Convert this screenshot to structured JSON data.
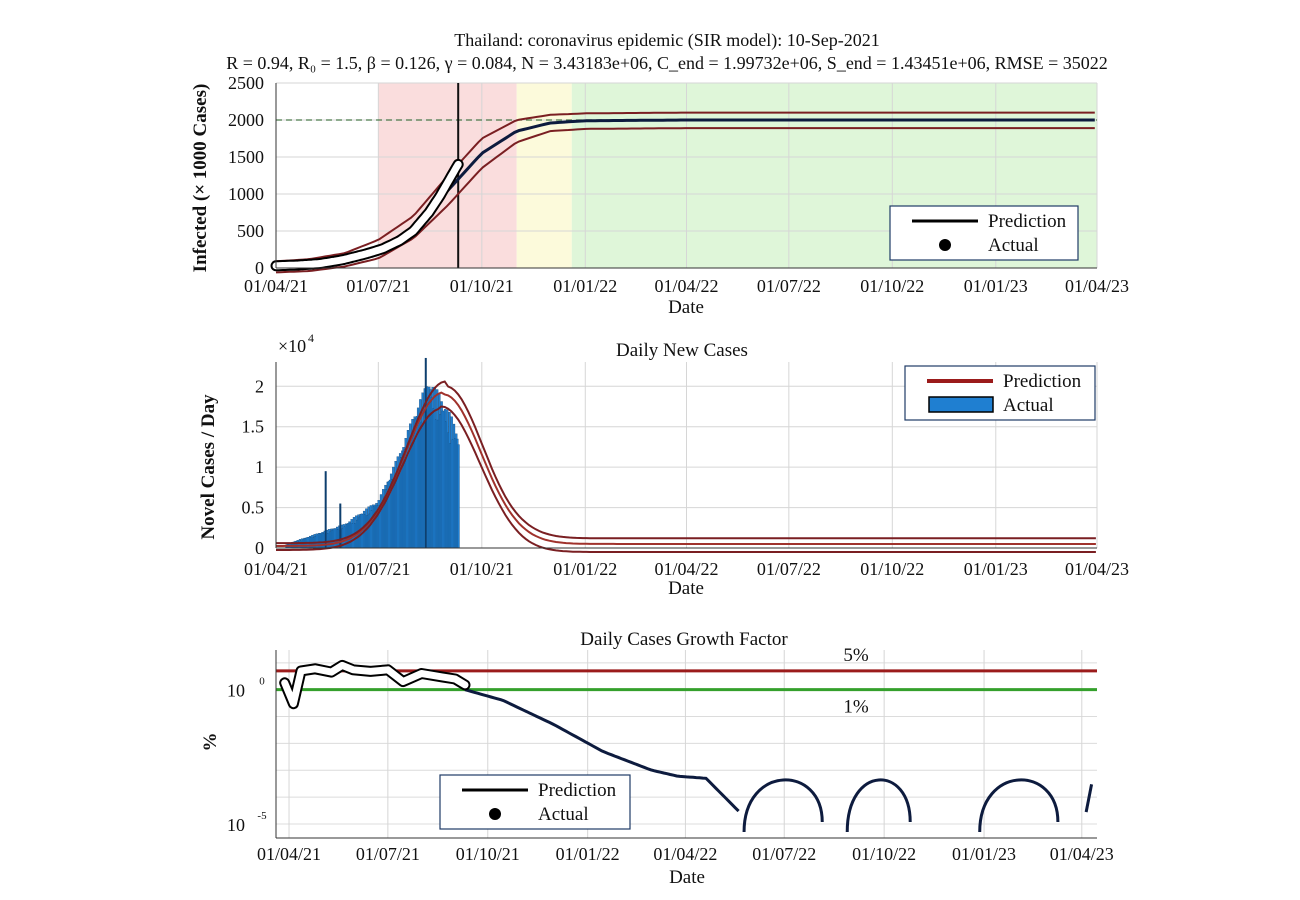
{
  "suptitle": {
    "line1": "Thailand: coronavirus epidemic (SIR model): 10-Sep-2021",
    "line2": "R = 0.94, R₀ = 1.5, β = 0.126, γ = 0.084, N = 3.43183e+06, C_end = 1.99732e+06, S_end = 1.43451e+06, RMSE = 35022"
  },
  "colors": {
    "prediction_main": "#0d1b3e",
    "prediction_band": "#7a1f22",
    "actual_fill": "#ffffff",
    "bar_fill": "#1f7fd1",
    "red_line": "#9b1b1b",
    "green_line": "#34a02c",
    "phase_red": "#f9d7d7",
    "phase_yellow": "#fcf9d5",
    "phase_green": "#d9f5d2"
  },
  "chart_data": [
    {
      "id": "infected",
      "type": "line",
      "title": "",
      "xlabel": "Date",
      "ylabel": "Infected (× 1000 Cases)",
      "x_ticks": [
        "01/04/21",
        "01/07/21",
        "01/10/21",
        "01/01/22",
        "01/04/22",
        "01/07/22",
        "01/10/22",
        "01/01/23",
        "01/04/23"
      ],
      "xlim": [
        "2021-04-01",
        "2023-04-01"
      ],
      "ylim": [
        0,
        2500
      ],
      "y_ticks": [
        0,
        500,
        1000,
        1500,
        2000,
        2500
      ],
      "grid": true,
      "legend": {
        "placement": "bottom-right",
        "entries": [
          "Prediction",
          "Actual"
        ]
      },
      "reference_line": {
        "y": 2000,
        "style": "dashed"
      },
      "current_date": "2021-09-10",
      "phases": [
        {
          "color": "red",
          "start": "2021-07-01",
          "end": "2021-11-01"
        },
        {
          "color": "yellow",
          "start": "2021-11-01",
          "end": "2021-12-20"
        },
        {
          "color": "green",
          "start": "2021-12-20",
          "end": "2023-04-01"
        }
      ],
      "series": [
        {
          "name": "Prediction",
          "role": "main",
          "x": [
            "2021-04-01",
            "2021-05-01",
            "2021-06-01",
            "2021-07-01",
            "2021-08-01",
            "2021-09-01",
            "2021-10-01",
            "2021-11-01",
            "2021-12-01",
            "2022-01-01",
            "2022-04-01",
            "2023-04-01"
          ],
          "y": [
            40,
            60,
            110,
            250,
            550,
            1050,
            1550,
            1850,
            1960,
            1990,
            2000,
            2000
          ]
        },
        {
          "role": "upper",
          "x": [
            "2021-04-01",
            "2021-05-01",
            "2021-06-01",
            "2021-07-01",
            "2021-08-01",
            "2021-09-01",
            "2021-10-01",
            "2021-11-01",
            "2021-12-01",
            "2022-01-01",
            "2022-04-01",
            "2023-04-01"
          ],
          "y": [
            90,
            120,
            200,
            380,
            700,
            1250,
            1750,
            2000,
            2070,
            2090,
            2100,
            2100
          ]
        },
        {
          "role": "lower",
          "x": [
            "2021-04-01",
            "2021-05-01",
            "2021-06-01",
            "2021-07-01",
            "2021-08-01",
            "2021-09-01",
            "2021-10-01",
            "2021-11-01",
            "2021-12-01",
            "2022-01-01",
            "2022-04-01",
            "2023-04-01"
          ],
          "y": [
            -60,
            -40,
            20,
            130,
            400,
            850,
            1350,
            1700,
            1850,
            1880,
            1890,
            1890
          ]
        },
        {
          "name": "Actual",
          "role": "actual",
          "x": [
            "2021-04-01",
            "2021-04-20",
            "2021-05-10",
            "2021-05-30",
            "2021-06-20",
            "2021-07-05",
            "2021-07-20",
            "2021-08-01",
            "2021-08-15",
            "2021-08-25",
            "2021-09-05",
            "2021-09-10"
          ],
          "y": [
            30,
            40,
            60,
            110,
            190,
            260,
            370,
            500,
            750,
            980,
            1270,
            1400
          ]
        }
      ]
    },
    {
      "id": "daily",
      "type": "bar",
      "title": "Daily New Cases",
      "xlabel": "Date",
      "ylabel": "Novel Cases / Day",
      "y_exponent": "×10",
      "y_exponent_power": "4",
      "x_ticks": [
        "01/04/21",
        "01/07/21",
        "01/10/21",
        "01/01/22",
        "01/04/22",
        "01/07/22",
        "01/10/22",
        "01/01/23",
        "01/04/23"
      ],
      "xlim": [
        "2021-04-01",
        "2023-04-01"
      ],
      "ylim": [
        0,
        2.3
      ],
      "y_ticks": [
        0,
        0.5,
        1,
        1.5,
        2
      ],
      "grid": true,
      "legend": {
        "placement": "top-right",
        "entries": [
          "Prediction",
          "Actual"
        ]
      },
      "bars": {
        "name": "Actual",
        "start": "2021-04-10",
        "end": "2021-09-10",
        "spikes": [
          {
            "date": "2021-05-15",
            "value": 0.95
          },
          {
            "date": "2021-05-28",
            "value": 0.55
          },
          {
            "date": "2021-08-12",
            "value": 2.35
          }
        ],
        "envelope": [
          [
            "2021-04-10",
            0.05
          ],
          [
            "2021-05-01",
            0.15
          ],
          [
            "2021-06-01",
            0.3
          ],
          [
            "2021-07-01",
            0.6
          ],
          [
            "2021-07-20",
            1.2
          ],
          [
            "2021-08-05",
            1.8
          ],
          [
            "2021-08-15",
            2.1
          ],
          [
            "2021-08-25",
            1.9
          ],
          [
            "2021-09-05",
            1.6
          ],
          [
            "2021-09-10",
            1.4
          ]
        ]
      },
      "series": [
        {
          "name": "Prediction",
          "role": "main",
          "peak": 1.9,
          "peak_date": "2021-08-28",
          "tail": 0.05
        },
        {
          "role": "upper",
          "peak": 2.0,
          "peak_date": "2021-08-30",
          "tail": 0.12
        },
        {
          "role": "lower",
          "peak": 1.75,
          "peak_date": "2021-08-26",
          "tail": -0.05
        }
      ]
    },
    {
      "id": "growth",
      "type": "line",
      "title": "Daily Cases Growth Factor",
      "xlabel": "Date",
      "ylabel": "%",
      "y_scale": "log",
      "y_ticks": [
        {
          "base": "10",
          "exp": "0",
          "value": 1
        },
        {
          "base": "10",
          "exp": "-5",
          "value": 1e-05
        }
      ],
      "ylim": [
        3e-06,
        30
      ],
      "x_ticks": [
        "01/04/21",
        "01/07/21",
        "01/10/21",
        "01/01/22",
        "01/04/22",
        "01/07/22",
        "01/10/22",
        "01/01/23",
        "01/04/23"
      ],
      "xlim": [
        "2021-03-20",
        "2023-04-15"
      ],
      "grid": true,
      "legend": {
        "placement": "bottom-left",
        "entries": [
          "Prediction",
          "Actual"
        ]
      },
      "reference_lines": [
        {
          "label": "5%",
          "value": 5,
          "color": "red"
        },
        {
          "label": "1%",
          "value": 1,
          "color": "green"
        }
      ],
      "series": [
        {
          "name": "Prediction",
          "role": "main",
          "x": [
            "2021-09-10",
            "2021-10-15",
            "2021-12-01",
            "2022-01-15",
            "2022-03-01",
            "2022-03-25",
            "2022-04-20",
            "2022-05-20"
          ],
          "y": [
            1.0,
            0.4,
            0.05,
            0.005,
            0.001,
            0.0006,
            0.0005,
            3e-05
          ]
        },
        {
          "role": "arcs",
          "arcs": [
            [
              "2022-05-25",
              "2022-08-05"
            ],
            [
              "2022-08-28",
              "2022-10-25"
            ],
            [
              "2022-12-28",
              "2023-03-10"
            ]
          ],
          "top": 0.0003,
          "bottom": 5e-06
        },
        {
          "name": "Actual",
          "role": "actual",
          "x": [
            "2021-03-28",
            "2021-04-05",
            "2021-04-12",
            "2021-04-25",
            "2021-05-10",
            "2021-05-20",
            "2021-05-30",
            "2021-06-15",
            "2021-07-01",
            "2021-07-15",
            "2021-08-01",
            "2021-08-20",
            "2021-09-01",
            "2021-09-10"
          ],
          "y": [
            1.8,
            0.3,
            5.0,
            6.0,
            4.5,
            8.0,
            5.5,
            4.8,
            5.5,
            2.0,
            4.0,
            3.0,
            2.5,
            1.5
          ]
        }
      ]
    }
  ]
}
